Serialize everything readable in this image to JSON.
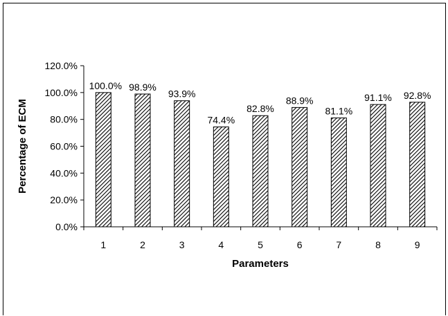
{
  "chart_data": {
    "type": "bar",
    "categories": [
      "1",
      "2",
      "3",
      "4",
      "5",
      "6",
      "7",
      "8",
      "9"
    ],
    "values": [
      100.0,
      98.9,
      93.9,
      74.4,
      82.8,
      88.9,
      81.1,
      91.1,
      92.8
    ],
    "data_labels": [
      "100.0%",
      "98.9%",
      "93.9%",
      "74.4%",
      "82.8%",
      "88.9%",
      "81.1%",
      "91.1%",
      "92.8%"
    ],
    "y_ticks": [
      0,
      20,
      40,
      60,
      80,
      100,
      120
    ],
    "y_tick_labels": [
      "0.0%",
      "20.0%",
      "40.0%",
      "60.0%",
      "80.0%",
      "100.0%",
      "120.0%"
    ],
    "ylim": [
      0,
      120
    ],
    "xlabel": "Parameters",
    "ylabel": "Percentage of ECM",
    "title": "",
    "grid": false,
    "legend": "none",
    "bar_pattern": "diagonal-hatch",
    "colors": {
      "bar_fill": "#ffffff",
      "hatch": "#000000",
      "axis": "#000000"
    }
  }
}
